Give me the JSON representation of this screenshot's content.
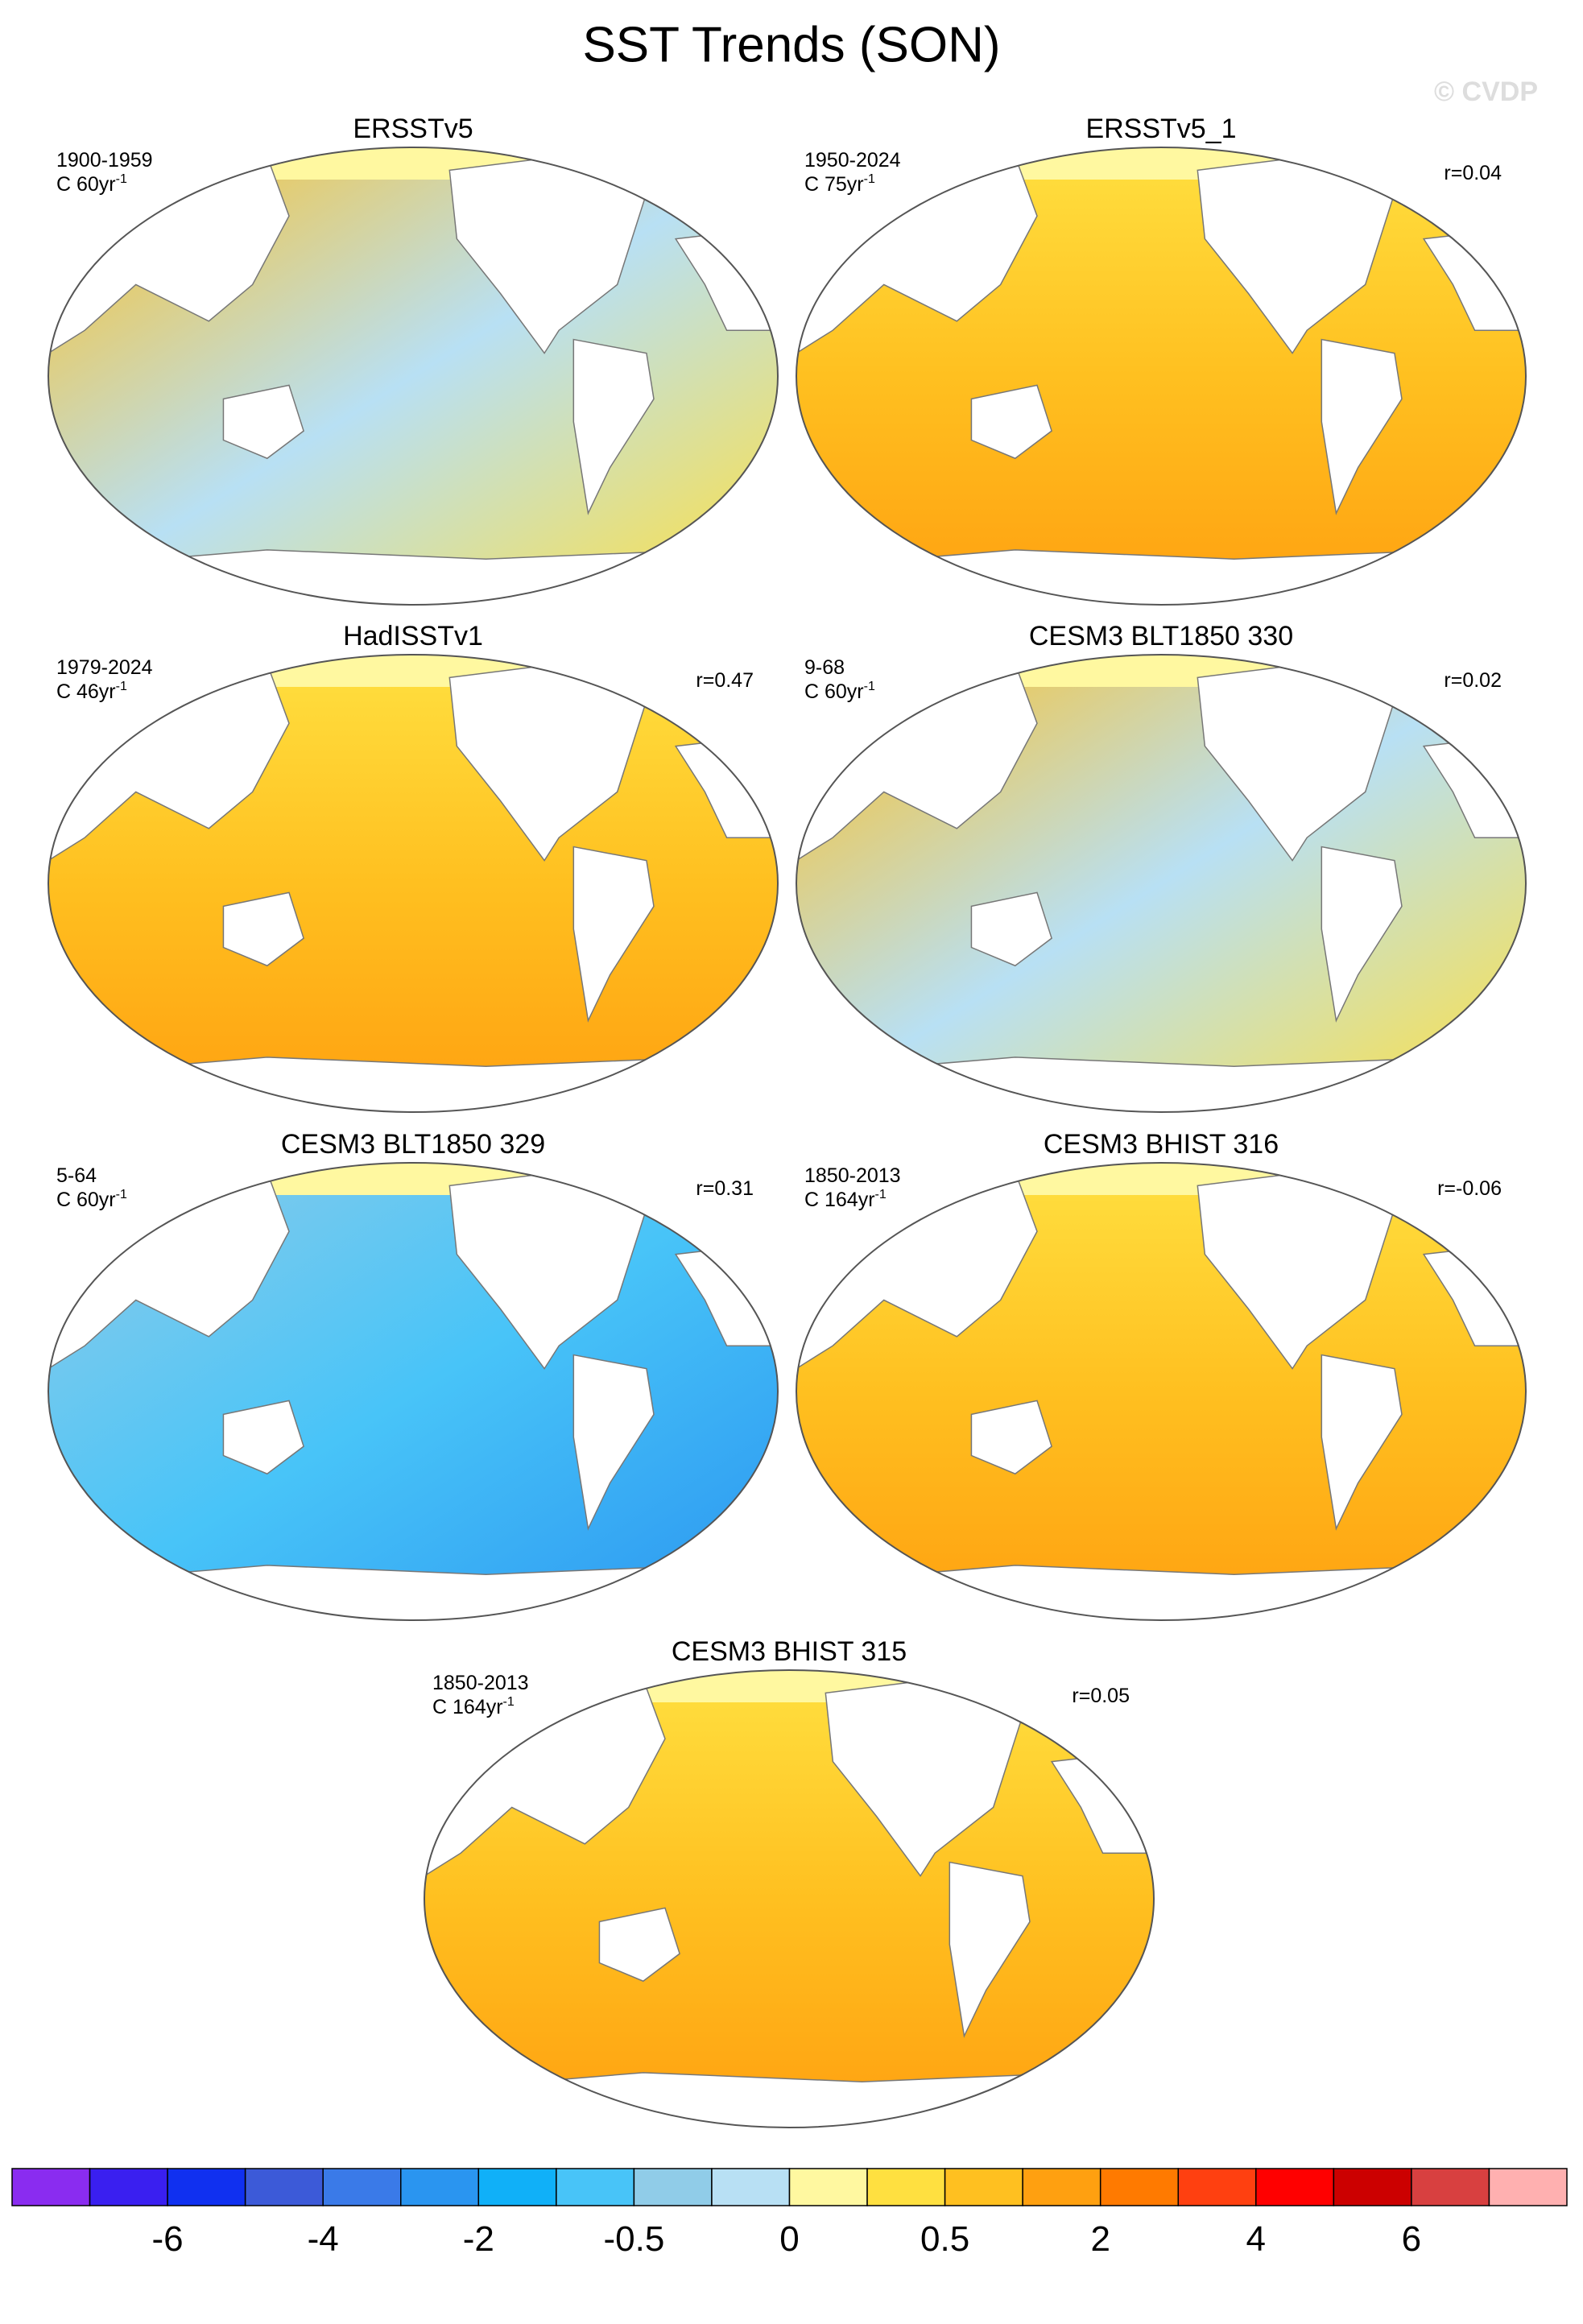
{
  "title": "SST Trends (SON)",
  "watermark": "© CVDP",
  "panels": [
    {
      "title": "ERSSTv5",
      "period": "1900-1959",
      "units": "C 60yr",
      "units_exp": "-1"
    },
    {
      "title": "ERSSTv5_1",
      "period": "1950-2024",
      "units": "C 75yr",
      "units_exp": "-1",
      "r": "r=0.04"
    },
    {
      "title": "HadISSTv1",
      "period": "1979-2024",
      "units": "C 46yr",
      "units_exp": "-1",
      "r": "r=0.47"
    },
    {
      "title": "CESM3 BLT1850 330",
      "period": "9-68",
      "units": "C 60yr",
      "units_exp": "-1",
      "r": "r=0.02"
    },
    {
      "title": "CESM3 BLT1850 329",
      "period": "5-64",
      "units": "C 60yr",
      "units_exp": "-1",
      "r": "r=0.31"
    },
    {
      "title": "CESM3 BHIST 316",
      "period": "1850-2013",
      "units": "C 164yr",
      "units_exp": "-1",
      "r": "r=-0.06"
    },
    {
      "title": "CESM3 BHIST 315",
      "period": "1850-2013",
      "units": "C 164yr",
      "units_exp": "-1",
      "r": "r=0.05"
    }
  ],
  "colorbar": {
    "colors": [
      "#8a2cf0",
      "#3a1ff0",
      "#1030f0",
      "#3c5ad8",
      "#3a7ae8",
      "#2a95f0",
      "#10b0f8",
      "#48c4f8",
      "#90cce8",
      "#b8e0f4",
      "#fff8a0",
      "#ffe040",
      "#ffc020",
      "#ffa010",
      "#ff7a00",
      "#ff4010",
      "#ff0000",
      "#cc0000",
      "#d84040",
      "#ffb0b0"
    ],
    "labels": [
      "-6",
      "-4",
      "-2",
      "-0.5",
      "0",
      "0.5",
      "2",
      "4",
      "6"
    ]
  }
}
